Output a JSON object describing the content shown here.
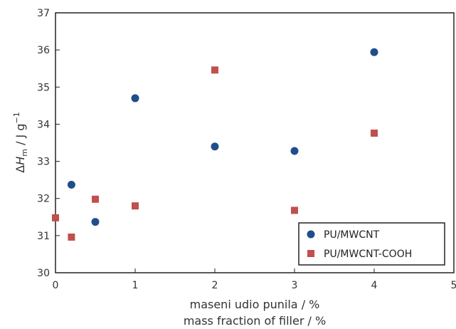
{
  "chart_data": {
    "type": "scatter",
    "xlabel_line1": "maseni udio punila / %",
    "xlabel_line2": "mass fraction of filler / %",
    "ylabel_delta": "Δ",
    "ylabel_var": "H",
    "ylabel_sub": "m",
    "ylabel_unit": " / J g",
    "ylabel_sup": "−1",
    "xlim": [
      0,
      5
    ],
    "ylim": [
      30,
      37
    ],
    "xticks": [
      "0",
      "1",
      "2",
      "3",
      "4",
      "5"
    ],
    "yticks": [
      "30",
      "31",
      "32",
      "33",
      "34",
      "35",
      "36",
      "37"
    ],
    "grid": false,
    "legend_position": "bottom-right",
    "series": [
      {
        "name": "PU/MWCNT",
        "marker": "circle",
        "color": "#1f4e8c",
        "x": [
          0.2,
          0.5,
          1,
          2,
          3,
          4
        ],
        "y": [
          32.37,
          31.37,
          34.7,
          33.4,
          33.28,
          35.94
        ]
      },
      {
        "name": "PU/MWCNT-COOH",
        "marker": "square",
        "color": "#c0504d",
        "x": [
          0,
          0.2,
          0.5,
          1,
          2,
          3,
          4
        ],
        "y": [
          31.48,
          30.96,
          31.98,
          31.8,
          35.46,
          31.68,
          33.76
        ]
      }
    ]
  }
}
